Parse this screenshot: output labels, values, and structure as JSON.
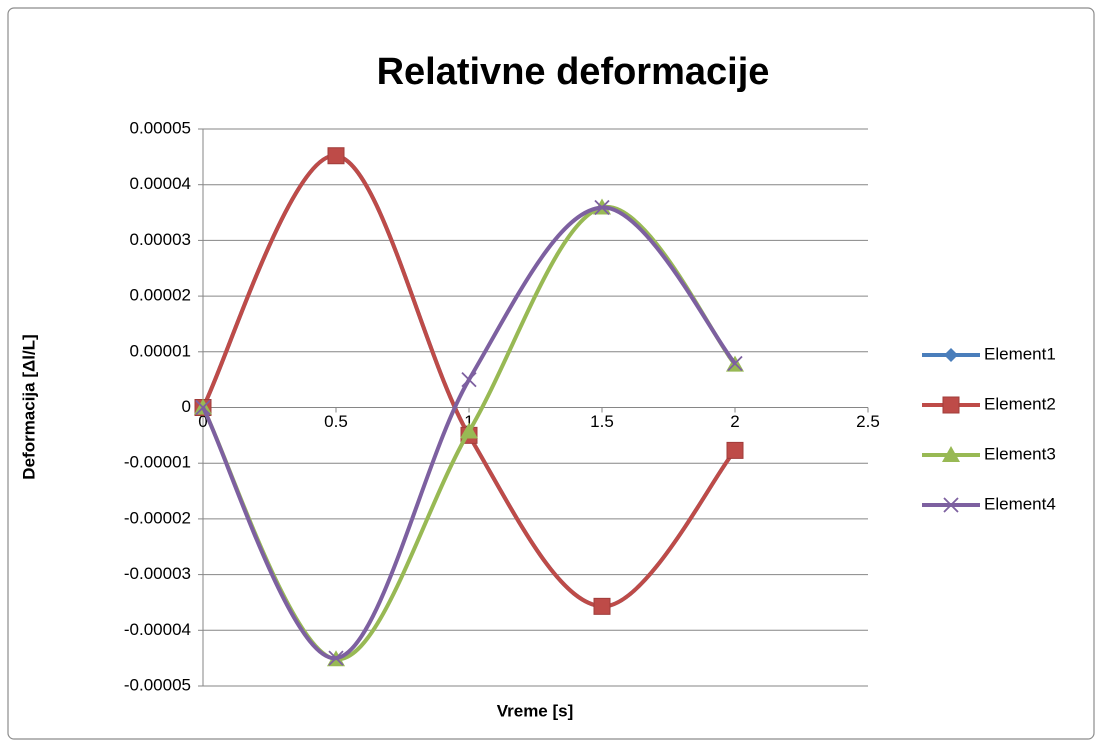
{
  "chart_data": {
    "type": "scatter",
    "title": "Relativne deformacije",
    "x_label": "Vreme [s]",
    "y_label": "Deformacija [Δl/L]",
    "x": [
      0,
      0.5,
      1,
      1.5,
      2
    ],
    "series": [
      {
        "name": "Element1",
        "color": "#4a7ebb",
        "marker": "diamond",
        "values": [
          0,
          4.52e-05,
          -5e-06,
          -3.57e-05,
          -7.7e-06
        ]
      },
      {
        "name": "Element2",
        "color": "#be4b48",
        "marker": "square",
        "values": [
          0,
          4.52e-05,
          -5e-06,
          -3.57e-05,
          -7.7e-06
        ]
      },
      {
        "name": "Element3",
        "color": "#98b954",
        "marker": "triangle",
        "values": [
          0,
          -4.52e-05,
          -4.3e-06,
          3.59e-05,
          7.7e-06
        ]
      },
      {
        "name": "Element4",
        "color": "#7d60a0",
        "marker": "x",
        "values": [
          0,
          -4.5e-05,
          5e-06,
          3.59e-05,
          7.9e-06
        ]
      }
    ],
    "xlim": [
      0,
      2.5
    ],
    "xticks": [
      0,
      0.5,
      1,
      1.5,
      2,
      2.5
    ],
    "ylim": [
      -5e-05,
      5e-05
    ],
    "yticks": [
      -5e-05,
      -4e-05,
      -3e-05,
      -2e-05,
      -1e-05,
      0,
      1e-05,
      2e-05,
      3e-05,
      4e-05,
      5e-05
    ],
    "grid": true,
    "legend": "right",
    "smooth": true
  }
}
